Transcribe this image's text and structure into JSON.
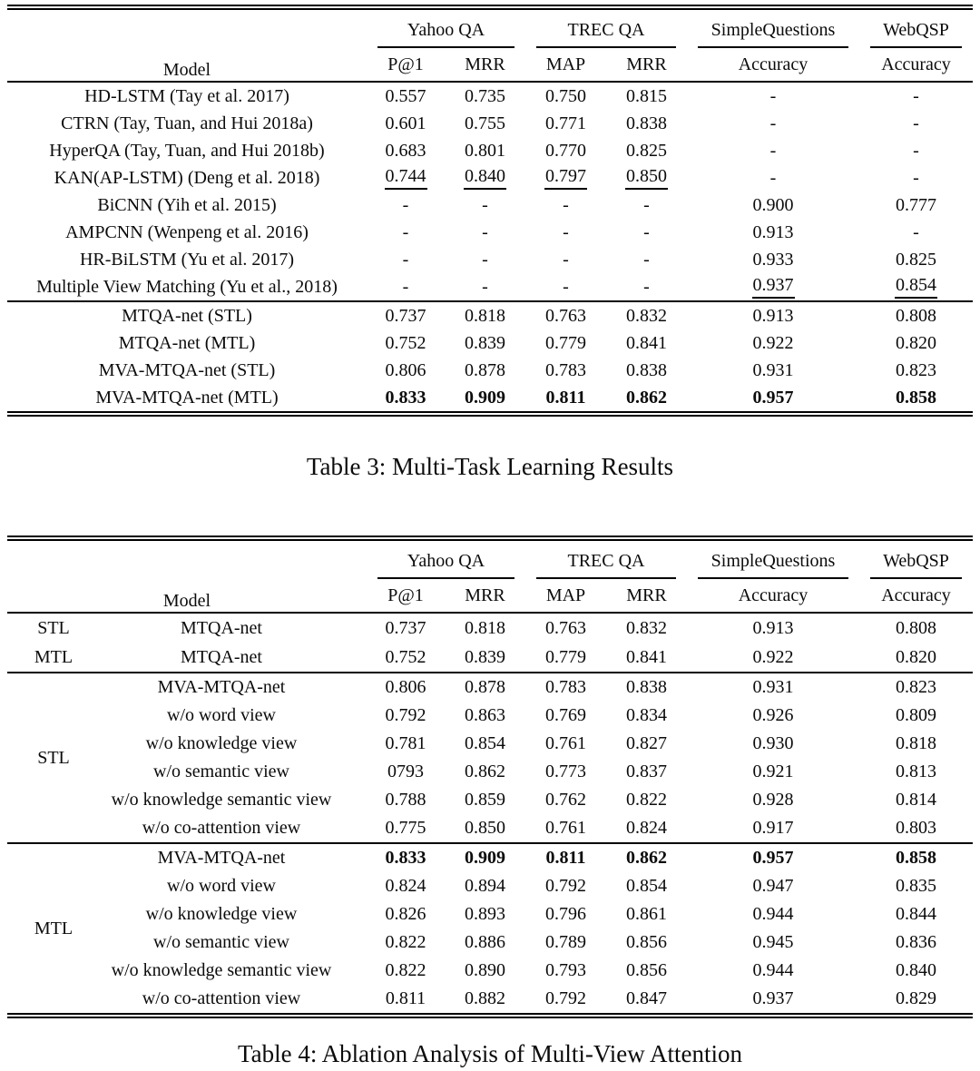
{
  "meta": {
    "background_color": "#ffffff",
    "text_color": "#0b0b0b",
    "rule_color": "#000000"
  },
  "table3": {
    "caption": "Table 3:  Multi-Task Learning Results",
    "header": {
      "model_label": "Model",
      "groups": [
        {
          "label": "Yahoo QA",
          "subcols": [
            "P@1",
            "MRR"
          ]
        },
        {
          "label": "TREC QA",
          "subcols": [
            "MAP",
            "MRR"
          ]
        },
        {
          "label": "SimpleQuestions",
          "subcols": [
            "Accuracy"
          ]
        },
        {
          "label": "WebQSP",
          "subcols": [
            "Accuracy"
          ]
        }
      ]
    },
    "sections": [
      {
        "name": "baselines",
        "rows": [
          {
            "model": "HD-LSTM (Tay et al. 2017)",
            "values": [
              "0.557",
              "0.735",
              "0.750",
              "0.815",
              "-",
              "-"
            ]
          },
          {
            "model": "CTRN (Tay, Tuan, and Hui 2018a)",
            "values": [
              "0.601",
              "0.755",
              "0.771",
              "0.838",
              "-",
              "-"
            ]
          },
          {
            "model": "HyperQA (Tay, Tuan, and Hui 2018b)",
            "values": [
              "0.683",
              "0.801",
              "0.770",
              "0.825",
              "-",
              "-"
            ]
          },
          {
            "model": "KAN(AP-LSTM) (Deng et al. 2018)",
            "values": [
              "0.744",
              "0.840",
              "0.797",
              "0.850",
              "-",
              "-"
            ],
            "underline": [
              0,
              1,
              2,
              3
            ]
          },
          {
            "model": "BiCNN (Yih et al. 2015)",
            "values": [
              "-",
              "-",
              "-",
              "-",
              "0.900",
              "0.777"
            ]
          },
          {
            "model": "AMPCNN (Wenpeng et al. 2016)",
            "values": [
              "-",
              "-",
              "-",
              "-",
              "0.913",
              "-"
            ]
          },
          {
            "model": "HR-BiLSTM (Yu et al. 2017)",
            "values": [
              "-",
              "-",
              "-",
              "-",
              "0.933",
              "0.825"
            ]
          },
          {
            "model": "Multiple View Matching (Yu et al., 2018)",
            "values": [
              "-",
              "-",
              "-",
              "-",
              "0.937",
              "0.854"
            ],
            "underline": [
              4,
              5
            ]
          }
        ]
      },
      {
        "name": "proposed",
        "rows": [
          {
            "model": "MTQA-net (STL)",
            "values": [
              "0.737",
              "0.818",
              "0.763",
              "0.832",
              "0.913",
              "0.808"
            ]
          },
          {
            "model": "MTQA-net (MTL)",
            "values": [
              "0.752",
              "0.839",
              "0.779",
              "0.841",
              "0.922",
              "0.820"
            ]
          },
          {
            "model": "MVA-MTQA-net (STL)",
            "values": [
              "0.806",
              "0.878",
              "0.783",
              "0.838",
              "0.931",
              "0.823"
            ]
          },
          {
            "model": "MVA-MTQA-net (MTL)",
            "values": [
              "0.833",
              "0.909",
              "0.811",
              "0.862",
              "0.957",
              "0.858"
            ],
            "bold_values": true
          }
        ]
      }
    ]
  },
  "table4": {
    "caption": "Table 4:  Ablation Analysis of Multi-View Attention",
    "header": {
      "model_label": "Model",
      "groups": [
        {
          "label": "Yahoo QA",
          "subcols": [
            "P@1",
            "MRR"
          ]
        },
        {
          "label": "TREC QA",
          "subcols": [
            "MAP",
            "MRR"
          ]
        },
        {
          "label": "SimpleQuestions",
          "subcols": [
            "Accuracy"
          ]
        },
        {
          "label": "WebQSP",
          "subcols": [
            "Accuracy"
          ]
        }
      ]
    },
    "sections": [
      {
        "name": "mtqa-net",
        "rows": [
          {
            "group": "STL",
            "model": "MTQA-net",
            "values": [
              "0.737",
              "0.818",
              "0.763",
              "0.832",
              "0.913",
              "0.808"
            ]
          },
          {
            "group": "MTL",
            "model": "MTQA-net",
            "values": [
              "0.752",
              "0.839",
              "0.779",
              "0.841",
              "0.922",
              "0.820"
            ]
          }
        ]
      },
      {
        "name": "stl-ablation",
        "group_label": "STL",
        "rows": [
          {
            "model": "MVA-MTQA-net",
            "values": [
              "0.806",
              "0.878",
              "0.783",
              "0.838",
              "0.931",
              "0.823"
            ]
          },
          {
            "model": "w/o word view",
            "values": [
              "0.792",
              "0.863",
              "0.769",
              "0.834",
              "0.926",
              "0.809"
            ]
          },
          {
            "model": "w/o knowledge view",
            "values": [
              "0.781",
              "0.854",
              "0.761",
              "0.827",
              "0.930",
              "0.818"
            ]
          },
          {
            "model": "w/o semantic view",
            "values": [
              "0793",
              "0.862",
              "0.773",
              "0.837",
              "0.921",
              "0.813"
            ]
          },
          {
            "model": "w/o knowledge semantic view",
            "values": [
              "0.788",
              "0.859",
              "0.762",
              "0.822",
              "0.928",
              "0.814"
            ]
          },
          {
            "model": "w/o co-attention view",
            "values": [
              "0.775",
              "0.850",
              "0.761",
              "0.824",
              "0.917",
              "0.803"
            ]
          }
        ]
      },
      {
        "name": "mtl-ablation",
        "group_label": "MTL",
        "rows": [
          {
            "model": "MVA-MTQA-net",
            "values": [
              "0.833",
              "0.909",
              "0.811",
              "0.862",
              "0.957",
              "0.858"
            ],
            "bold_values": true
          },
          {
            "model": "w/o word view",
            "values": [
              "0.824",
              "0.894",
              "0.792",
              "0.854",
              "0.947",
              "0.835"
            ]
          },
          {
            "model": "w/o knowledge view",
            "values": [
              "0.826",
              "0.893",
              "0.796",
              "0.861",
              "0.944",
              "0.844"
            ]
          },
          {
            "model": "w/o semantic view",
            "values": [
              "0.822",
              "0.886",
              "0.789",
              "0.856",
              "0.945",
              "0.836"
            ]
          },
          {
            "model": "w/o knowledge semantic view",
            "values": [
              "0.822",
              "0.890",
              "0.793",
              "0.856",
              "0.944",
              "0.840"
            ]
          },
          {
            "model": "w/o co-attention view",
            "values": [
              "0.811",
              "0.882",
              "0.792",
              "0.847",
              "0.937",
              "0.829"
            ]
          }
        ]
      }
    ]
  }
}
